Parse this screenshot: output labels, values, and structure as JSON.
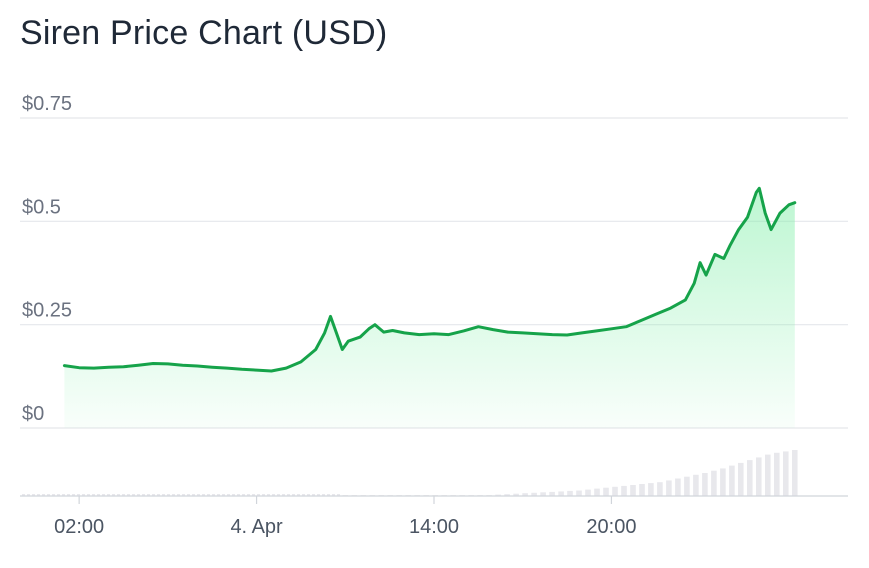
{
  "title": "Siren Price Chart (USD)",
  "colors": {
    "line": "#16a34a",
    "fill_top": "#86efac",
    "grid": "#e5e7eb",
    "volume": "#e8e8ec",
    "axis": "#d1d5db"
  },
  "chart_data": {
    "type": "line",
    "title": "Siren Price Chart (USD)",
    "xlabel": "",
    "ylabel": "",
    "ylim": [
      0,
      0.75
    ],
    "y_ticks": [
      {
        "value": 0,
        "label": "$0"
      },
      {
        "value": 0.25,
        "label": "$0.25"
      },
      {
        "value": 0.5,
        "label": "$0.5"
      },
      {
        "value": 0.75,
        "label": "$0.75"
      }
    ],
    "x_range_hours": [
      0,
      28
    ],
    "x_ticks": [
      {
        "value": 2,
        "label": "02:00"
      },
      {
        "value": 8,
        "label": "4. Apr"
      },
      {
        "value": 14,
        "label": "14:00"
      },
      {
        "value": 20,
        "label": "20:00"
      }
    ],
    "grid": true,
    "legend": "none",
    "series": [
      {
        "values": [
          [
            1.5,
            0.151
          ],
          [
            2.0,
            0.146
          ],
          [
            2.5,
            0.145
          ],
          [
            3.0,
            0.147
          ],
          [
            3.5,
            0.148
          ],
          [
            4.0,
            0.152
          ],
          [
            4.5,
            0.156
          ],
          [
            5.0,
            0.155
          ],
          [
            5.5,
            0.152
          ],
          [
            6.0,
            0.15
          ],
          [
            6.5,
            0.147
          ],
          [
            7.0,
            0.145
          ],
          [
            7.5,
            0.142
          ],
          [
            8.0,
            0.14
          ],
          [
            8.5,
            0.138
          ],
          [
            9.0,
            0.145
          ],
          [
            9.5,
            0.16
          ],
          [
            10.0,
            0.19
          ],
          [
            10.3,
            0.23
          ],
          [
            10.5,
            0.27
          ],
          [
            10.7,
            0.23
          ],
          [
            10.9,
            0.19
          ],
          [
            11.1,
            0.21
          ],
          [
            11.5,
            0.22
          ],
          [
            11.8,
            0.24
          ],
          [
            12.0,
            0.25
          ],
          [
            12.3,
            0.232
          ],
          [
            12.6,
            0.236
          ],
          [
            13.0,
            0.23
          ],
          [
            13.5,
            0.226
          ],
          [
            14.0,
            0.228
          ],
          [
            14.5,
            0.226
          ],
          [
            15.0,
            0.235
          ],
          [
            15.5,
            0.245
          ],
          [
            16.0,
            0.238
          ],
          [
            16.5,
            0.232
          ],
          [
            17.0,
            0.23
          ],
          [
            17.5,
            0.228
          ],
          [
            18.0,
            0.226
          ],
          [
            18.5,
            0.225
          ],
          [
            19.0,
            0.23
          ],
          [
            19.5,
            0.235
          ],
          [
            20.0,
            0.24
          ],
          [
            20.5,
            0.245
          ],
          [
            21.0,
            0.26
          ],
          [
            21.5,
            0.275
          ],
          [
            22.0,
            0.29
          ],
          [
            22.5,
            0.31
          ],
          [
            22.8,
            0.35
          ],
          [
            23.0,
            0.4
          ],
          [
            23.2,
            0.37
          ],
          [
            23.5,
            0.42
          ],
          [
            23.8,
            0.41
          ],
          [
            24.0,
            0.44
          ],
          [
            24.3,
            0.48
          ],
          [
            24.6,
            0.51
          ],
          [
            24.9,
            0.57
          ],
          [
            25.0,
            0.58
          ],
          [
            25.2,
            0.52
          ],
          [
            25.4,
            0.48
          ],
          [
            25.7,
            0.52
          ],
          [
            26.0,
            0.54
          ],
          [
            26.2,
            0.545
          ]
        ]
      }
    ],
    "volume_values": [
      0.02,
      0.02,
      0.02,
      0.02,
      0.02,
      0.02,
      0.02,
      0.02,
      0.02,
      0.02,
      0.02,
      0.02,
      0.02,
      0.02,
      0.02,
      0.02,
      0.02,
      0.03,
      0.04,
      0.05,
      0.06,
      0.07,
      0.08,
      0.09,
      0.1,
      0.11,
      0.12,
      0.14,
      0.16,
      0.18,
      0.2,
      0.22,
      0.24,
      0.26,
      0.28,
      0.3,
      0.34,
      0.38,
      0.42,
      0.46,
      0.5,
      0.55,
      0.6,
      0.66,
      0.72,
      0.78,
      0.84,
      0.9,
      0.94,
      0.97,
      1.0
    ]
  }
}
